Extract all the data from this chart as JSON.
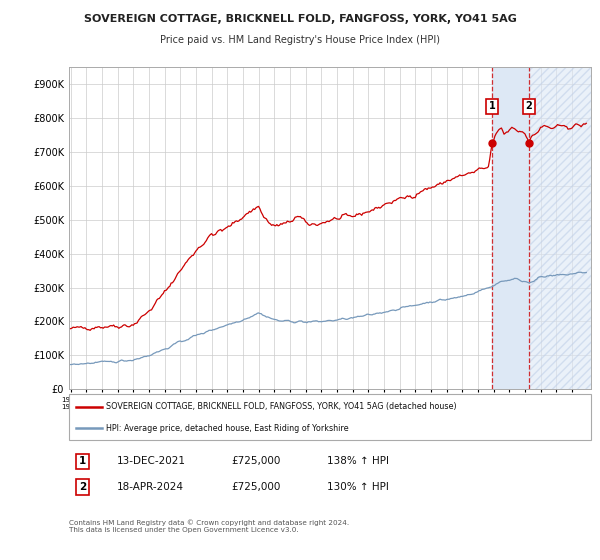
{
  "title1": "SOVEREIGN COTTAGE, BRICKNELL FOLD, FANGFOSS, YORK, YO41 5AG",
  "title2": "Price paid vs. HM Land Registry's House Price Index (HPI)",
  "ylim": [
    0,
    950000
  ],
  "yticks": [
    0,
    100000,
    200000,
    300000,
    400000,
    500000,
    600000,
    700000,
    800000,
    900000
  ],
  "ytick_labels": [
    "£0",
    "£100K",
    "£200K",
    "£300K",
    "£400K",
    "£500K",
    "£600K",
    "£700K",
    "£800K",
    "£900K"
  ],
  "red_color": "#cc0000",
  "blue_color": "#7799bb",
  "grid_color": "#cccccc",
  "legend1": "SOVEREIGN COTTAGE, BRICKNELL FOLD, FANGFOSS, YORK, YO41 5AG (detached house)",
  "legend2": "HPI: Average price, detached house, East Riding of Yorkshire",
  "marker1_value": 725000,
  "marker2_value": 725000,
  "table_row1": [
    "1",
    "13-DEC-2021",
    "£725,000",
    "138% ↑ HPI"
  ],
  "table_row2": [
    "2",
    "18-APR-2024",
    "£725,000",
    "130% ↑ HPI"
  ],
  "footer": "Contains HM Land Registry data © Crown copyright and database right 2024.\nThis data is licensed under the Open Government Licence v3.0.",
  "shade_color": "#dde8f5",
  "hatch_color": "#c0d0e8"
}
